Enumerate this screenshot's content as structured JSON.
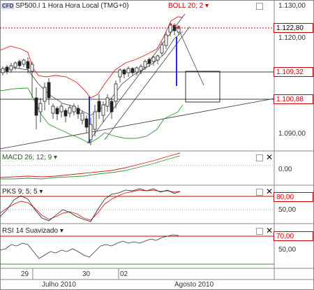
{
  "main_panel": {
    "symbol_logo": "CFD",
    "title": "SP500.I 1 Hora Hora Local (TMG+0)",
    "indicator_label": "BOLL 20; 2",
    "indicator_color": "#cc0000",
    "price_labels": [
      "1.130,00",
      "1.120,00",
      "1.090,00"
    ],
    "tags": [
      {
        "value": "1.122,80",
        "color": "#cc0000"
      },
      {
        "value": "1.109,32",
        "color": "#cc0000"
      },
      {
        "value": "1.100,88",
        "color": "#cc0000"
      }
    ]
  },
  "macd_panel": {
    "title": "MACD 26; 12; 9",
    "axis": "0,00"
  },
  "pks_panel": {
    "title": "PKS 9; 5; 5",
    "level_tag": "80,00",
    "axis": "50,00"
  },
  "rsi_panel": {
    "title": "RSI 14 Suavizado",
    "level_tag": "70,00",
    "axis": "50,00"
  },
  "x_axis": {
    "days": [
      "29",
      "30",
      "02"
    ],
    "months": [
      "Julho 2010",
      "Agosto 2010"
    ]
  },
  "colors": {
    "upper_band": "#dd2222",
    "lower_band": "#339933",
    "candles": "#222222",
    "accent": "#cc0000"
  }
}
